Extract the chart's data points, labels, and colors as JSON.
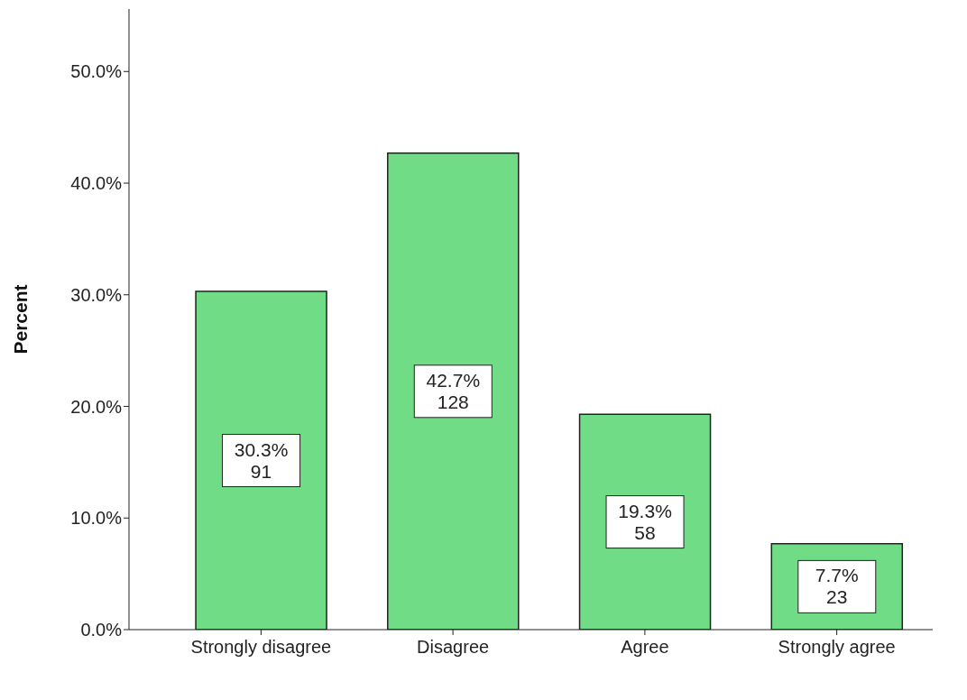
{
  "chart_data": {
    "type": "bar",
    "ylabel": "Percent",
    "categories": [
      "Strongly disagree",
      "Disagree",
      "Agree",
      "Strongly agree"
    ],
    "values": [
      30.3,
      42.7,
      19.3,
      7.7
    ],
    "color": "#70dc86",
    "value_labels": [
      "30.3%\n91",
      "42.7%\n128",
      "19.3%\n58",
      "7.7%\n23"
    ],
    "ylim": [
      0,
      55.6
    ],
    "yticks": [
      {
        "value": 0,
        "label": "0.0%"
      },
      {
        "value": 10,
        "label": "10.0%"
      },
      {
        "value": 20,
        "label": "20.0%"
      },
      {
        "value": 30,
        "label": "30.0%"
      },
      {
        "value": 40,
        "label": "40.0%"
      },
      {
        "value": 50,
        "label": "50.0%"
      }
    ],
    "grid": false,
    "legend": false
  }
}
